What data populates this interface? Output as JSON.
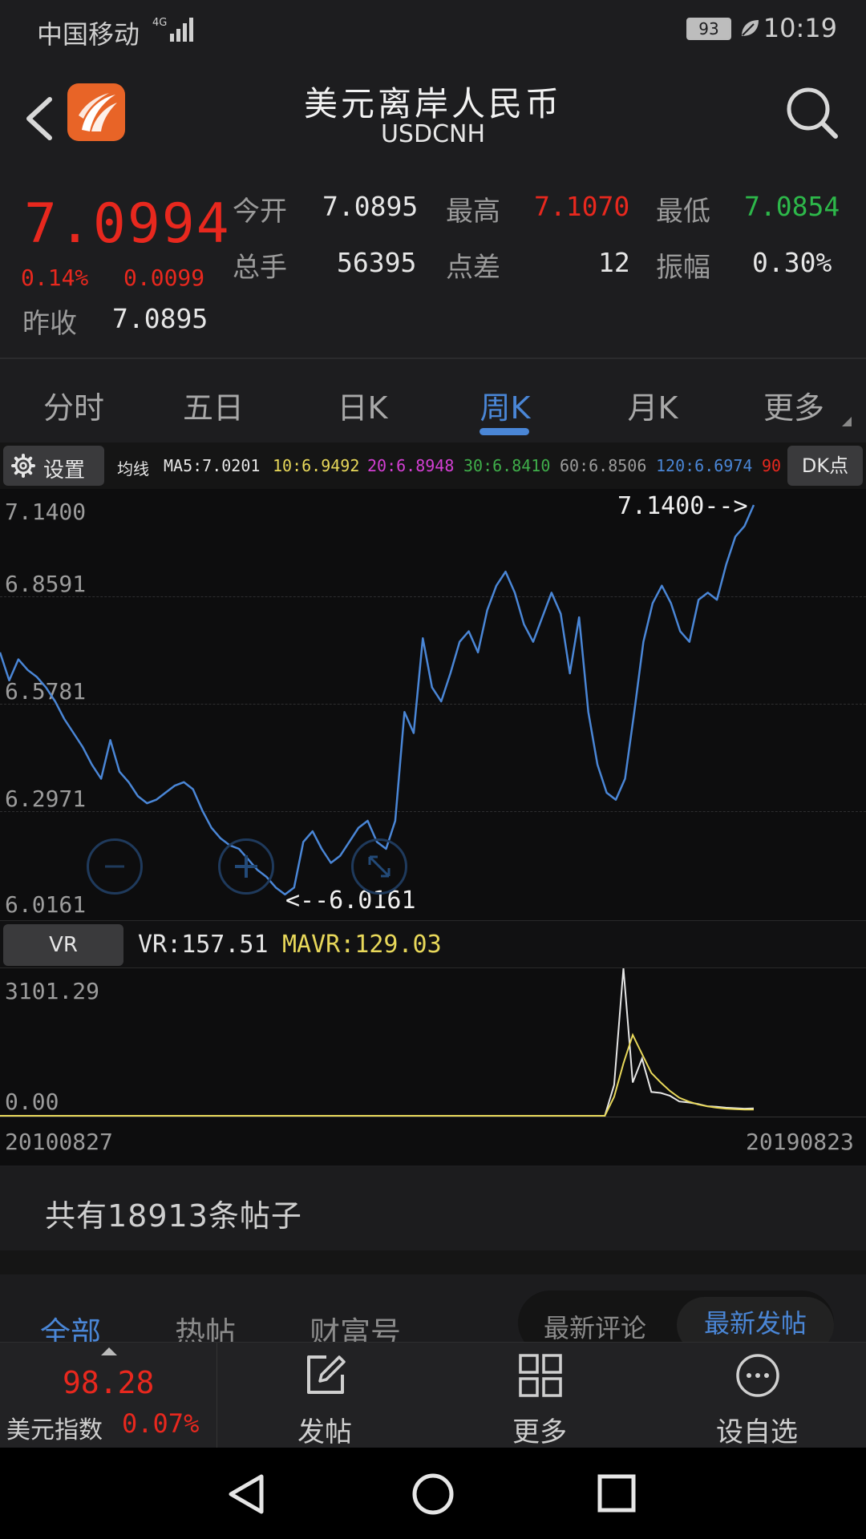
{
  "status": {
    "carrier": "中国移动",
    "network": "4G",
    "battery": "93",
    "time": "10:19"
  },
  "header": {
    "title": "美元离岸人民币",
    "symbol": "USDCNH"
  },
  "quote": {
    "price": "7.0994",
    "change_pct": "0.14%",
    "change": "0.0099",
    "prev_close_label": "昨收",
    "prev_close": "7.0895",
    "open_label": "今开",
    "open": "7.0895",
    "high_label": "最高",
    "high": "7.1070",
    "low_label": "最低",
    "low": "7.0854",
    "volume_label": "总手",
    "volume": "56395",
    "spread_label": "点差",
    "spread": "12",
    "amplitude_label": "振幅",
    "amplitude": "0.30%"
  },
  "tabs": [
    {
      "label": "分时"
    },
    {
      "label": "五日"
    },
    {
      "label": "日K"
    },
    {
      "label": "周K"
    },
    {
      "label": "月K"
    },
    {
      "label": "更多"
    }
  ],
  "ma_bar": {
    "settings_label": "设置",
    "ma_label": "均线",
    "ma5": "MA5:7.0201",
    "ma10": "10:6.9492",
    "ma20": "20:6.8948",
    "ma30": "30:6.8410",
    "ma60": "60:6.8506",
    "ma120": "120:6.6974",
    "ma90": "90",
    "dk_label": "DK点"
  },
  "colors": {
    "up": "#e8281e",
    "down": "#2db84a",
    "accent": "#4a86d6",
    "line": "#4a86d6",
    "vr": "#e6e6e6",
    "mavr": "#e8d85a"
  },
  "chart_data": {
    "type": "line",
    "y_ticks": [
      "7.1400",
      "6.8591",
      "6.5781",
      "6.2971",
      "6.0161"
    ],
    "ylim": [
      6.0161,
      7.14
    ],
    "max_annotation": "7.1400-->",
    "min_annotation": "<--6.0161",
    "x_start": "20100827",
    "x_end": "20190823",
    "series": [
      {
        "values": [
          6.72,
          6.64,
          6.7,
          6.67,
          6.65,
          6.62,
          6.58,
          6.53,
          6.49,
          6.45,
          6.4,
          6.36,
          6.47,
          6.38,
          6.35,
          6.31,
          6.29,
          6.3,
          6.32,
          6.34,
          6.35,
          6.33,
          6.27,
          6.22,
          6.19,
          6.17,
          6.16,
          6.13,
          6.1,
          6.08,
          6.05,
          6.03,
          6.05,
          6.18,
          6.21,
          6.16,
          6.12,
          6.14,
          6.18,
          6.22,
          6.24,
          6.18,
          6.16,
          6.24,
          6.55,
          6.49,
          6.76,
          6.62,
          6.58,
          6.66,
          6.75,
          6.78,
          6.72,
          6.84,
          6.91,
          6.95,
          6.89,
          6.8,
          6.75,
          6.82,
          6.89,
          6.83,
          6.66,
          6.82,
          6.55,
          6.4,
          6.32,
          6.3,
          6.36,
          6.55,
          6.75,
          6.86,
          6.91,
          6.86,
          6.78,
          6.75,
          6.87,
          6.89,
          6.87,
          6.97,
          7.05,
          7.08,
          7.14
        ]
      }
    ]
  },
  "vr": {
    "label": "VR",
    "vr_text": "VR:157.51",
    "mavr_text": "MAVR:129.03",
    "y_max": "3101.29",
    "y_min": "0.00"
  },
  "vr_chart_data": {
    "type": "line",
    "ylim": [
      0,
      3101.29
    ],
    "series": [
      {
        "values": [
          0,
          0,
          0,
          0,
          0,
          0,
          0,
          0,
          0,
          0,
          0,
          0,
          0,
          0,
          0,
          0,
          0,
          0,
          0,
          0,
          0,
          0,
          0,
          0,
          0,
          0,
          0,
          0,
          0,
          0,
          0,
          0,
          0,
          0,
          0,
          0,
          0,
          0,
          0,
          0,
          0,
          0,
          0,
          0,
          0,
          0,
          0,
          0,
          0,
          0,
          0,
          0,
          0,
          0,
          0,
          0,
          0,
          0,
          0,
          0,
          0,
          0,
          0,
          0,
          0,
          0,
          650,
          3101,
          700,
          1200,
          500,
          480,
          420,
          300,
          280,
          250,
          200,
          190,
          170,
          160,
          150,
          157
        ]
      },
      {
        "values": [
          0,
          0,
          0,
          0,
          0,
          0,
          0,
          0,
          0,
          0,
          0,
          0,
          0,
          0,
          0,
          0,
          0,
          0,
          0,
          0,
          0,
          0,
          0,
          0,
          0,
          0,
          0,
          0,
          0,
          0,
          0,
          0,
          0,
          0,
          0,
          0,
          0,
          0,
          0,
          0,
          0,
          0,
          0,
          0,
          0,
          0,
          0,
          0,
          0,
          0,
          0,
          0,
          0,
          0,
          0,
          0,
          0,
          0,
          0,
          0,
          0,
          0,
          0,
          0,
          0,
          0,
          400,
          1100,
          1700,
          1300,
          900,
          700,
          520,
          380,
          300,
          240,
          200,
          170,
          150,
          140,
          130,
          129
        ]
      }
    ]
  },
  "posts": {
    "count_text": "共有18913条帖子"
  },
  "post_tabs": [
    {
      "label": "全部"
    },
    {
      "label": "热帖"
    },
    {
      "label": "财富号"
    }
  ],
  "sort": {
    "comment": "最新评论",
    "post": "最新发帖"
  },
  "toolbar": {
    "index_value": "98.28",
    "index_label": "美元指数",
    "index_pct": "0.07%",
    "post_label": "发帖",
    "more_label": "更多",
    "watch_label": "设自选"
  }
}
